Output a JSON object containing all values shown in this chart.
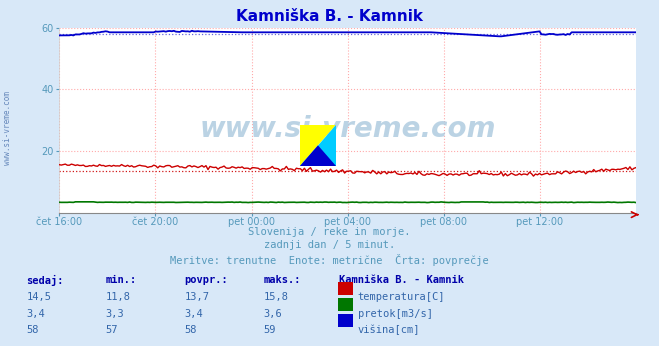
{
  "title": "Kamniška B. - Kamnik",
  "title_color": "#0000cc",
  "bg_color": "#d8e8f8",
  "plot_bg_color": "#ffffff",
  "grid_color": "#ffaaaa",
  "grid_color_minor": "#ffcccc",
  "xlabel_ticks": [
    "čet 16:00",
    "čet 20:00",
    "pet 00:00",
    "pet 04:00",
    "pet 08:00",
    "pet 12:00"
  ],
  "ylim": [
    0,
    60
  ],
  "yticks": [
    20,
    40,
    60
  ],
  "n_points": 288,
  "temp_base": 13.7,
  "temp_min": 11.8,
  "temp_max": 15.8,
  "pretok_base": 3.4,
  "pretok_min": 3.3,
  "pretok_max": 3.6,
  "visina_base": 58.0,
  "visina_min": 57.0,
  "visina_max": 59.0,
  "temp_color": "#cc0000",
  "pretok_color": "#007700",
  "visina_color": "#0000cc",
  "subtitle1": "Slovenija / reke in morje.",
  "subtitle2": "zadnji dan / 5 minut.",
  "subtitle3": "Meritve: trenutne  Enote: metrične  Črta: povprečje",
  "subtitle_color": "#5599bb",
  "table_headers": [
    "sedaj:",
    "min.:",
    "povpr.:",
    "maks.:"
  ],
  "table_col1": [
    "14,5",
    "3,4",
    "58"
  ],
  "table_col2": [
    "11,8",
    "3,3",
    "57"
  ],
  "table_col3": [
    "13,7",
    "3,4",
    "58"
  ],
  "table_col4": [
    "15,8",
    "3,6",
    "59"
  ],
  "legend_title": "Kamniška B. - Kamnik",
  "legend_labels": [
    "temperatura[C]",
    "pretok[m3/s]",
    "višina[cm]"
  ],
  "legend_colors": [
    "#cc0000",
    "#007700",
    "#0000cc"
  ],
  "header_color": "#0000aa",
  "val_color": "#3366aa",
  "side_label": "www.si-vreme.com",
  "side_color": "#6688bb",
  "watermark_color": "#b0cce0",
  "arrow_color": "#cc0000"
}
